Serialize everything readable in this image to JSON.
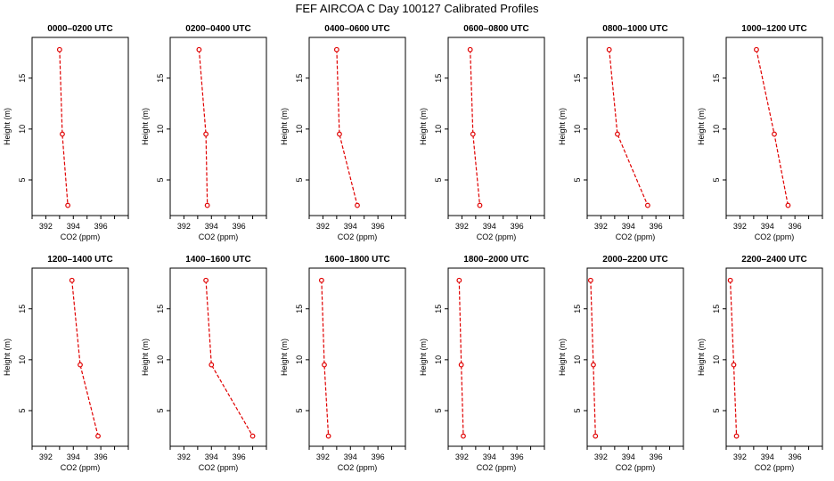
{
  "title": "FEF AIRCOA C  Day 100127  Calibrated Profiles",
  "colors": {
    "series": "#e00000",
    "axis": "#000000",
    "background": "#ffffff"
  },
  "chart_data": [
    {
      "type": "line",
      "title": "0000–0200 UTC",
      "xlabel": "CO2 (ppm)",
      "ylabel": "Height (m)",
      "xlim": [
        391,
        398
      ],
      "ylim": [
        1.5,
        19
      ],
      "xticks": [
        392,
        394,
        396
      ],
      "yticks": [
        5,
        10,
        15
      ],
      "x": [
        393.0,
        393.2,
        393.6
      ],
      "y": [
        17.8,
        9.5,
        2.5
      ]
    },
    {
      "type": "line",
      "title": "0200–0400 UTC",
      "xlabel": "CO2 (ppm)",
      "ylabel": "Height (m)",
      "xlim": [
        391,
        398
      ],
      "ylim": [
        1.5,
        19
      ],
      "xticks": [
        392,
        394,
        396
      ],
      "yticks": [
        5,
        10,
        15
      ],
      "x": [
        393.1,
        393.6,
        393.7
      ],
      "y": [
        17.8,
        9.5,
        2.5
      ]
    },
    {
      "type": "line",
      "title": "0400–0600 UTC",
      "xlabel": "CO2 (ppm)",
      "ylabel": "Height (m)",
      "xlim": [
        391,
        398
      ],
      "ylim": [
        1.5,
        19
      ],
      "xticks": [
        392,
        394,
        396
      ],
      "yticks": [
        5,
        10,
        15
      ],
      "x": [
        393.0,
        393.2,
        394.5
      ],
      "y": [
        17.8,
        9.5,
        2.5
      ]
    },
    {
      "type": "line",
      "title": "0600–0800 UTC",
      "xlabel": "CO2 (ppm)",
      "ylabel": "Height (m)",
      "xlim": [
        391,
        398
      ],
      "ylim": [
        1.5,
        19
      ],
      "xticks": [
        392,
        394,
        396
      ],
      "yticks": [
        5,
        10,
        15
      ],
      "x": [
        392.6,
        392.8,
        393.3
      ],
      "y": [
        17.8,
        9.5,
        2.5
      ]
    },
    {
      "type": "line",
      "title": "0800–1000 UTC",
      "xlabel": "CO2 (ppm)",
      "ylabel": "Height (m)",
      "xlim": [
        391,
        398
      ],
      "ylim": [
        1.5,
        19
      ],
      "xticks": [
        392,
        394,
        396
      ],
      "yticks": [
        5,
        10,
        15
      ],
      "x": [
        392.6,
        393.2,
        395.4
      ],
      "y": [
        17.8,
        9.5,
        2.5
      ]
    },
    {
      "type": "line",
      "title": "1000–1200 UTC",
      "xlabel": "CO2 (ppm)",
      "ylabel": "Height (m)",
      "xlim": [
        391,
        398
      ],
      "ylim": [
        1.5,
        19
      ],
      "xticks": [
        392,
        394,
        396
      ],
      "yticks": [
        5,
        10,
        15
      ],
      "x": [
        393.2,
        394.5,
        395.5
      ],
      "y": [
        17.8,
        9.5,
        2.5
      ]
    },
    {
      "type": "line",
      "title": "1200–1400 UTC",
      "xlabel": "CO2 (ppm)",
      "ylabel": "Height (m)",
      "xlim": [
        391,
        398
      ],
      "ylim": [
        1.5,
        19
      ],
      "xticks": [
        392,
        394,
        396
      ],
      "yticks": [
        5,
        10,
        15
      ],
      "x": [
        393.9,
        394.5,
        395.8
      ],
      "y": [
        17.8,
        9.5,
        2.5
      ]
    },
    {
      "type": "line",
      "title": "1400–1600 UTC",
      "xlabel": "CO2 (ppm)",
      "ylabel": "Height (m)",
      "xlim": [
        391,
        398
      ],
      "ylim": [
        1.5,
        19
      ],
      "xticks": [
        392,
        394,
        396
      ],
      "yticks": [
        5,
        10,
        15
      ],
      "x": [
        393.6,
        394.0,
        397.0
      ],
      "y": [
        17.8,
        9.5,
        2.5
      ]
    },
    {
      "type": "line",
      "title": "1600–1800 UTC",
      "xlabel": "CO2 (ppm)",
      "ylabel": "Height (m)",
      "xlim": [
        391,
        398
      ],
      "ylim": [
        1.5,
        19
      ],
      "xticks": [
        392,
        394,
        396
      ],
      "yticks": [
        5,
        10,
        15
      ],
      "x": [
        391.9,
        392.1,
        392.4
      ],
      "y": [
        17.8,
        9.5,
        2.5
      ]
    },
    {
      "type": "line",
      "title": "1800–2000 UTC",
      "xlabel": "CO2 (ppm)",
      "ylabel": "Height (m)",
      "xlim": [
        391,
        398
      ],
      "ylim": [
        1.5,
        19
      ],
      "xticks": [
        392,
        394,
        396
      ],
      "yticks": [
        5,
        10,
        15
      ],
      "x": [
        391.8,
        391.95,
        392.1
      ],
      "y": [
        17.8,
        9.5,
        2.5
      ]
    },
    {
      "type": "line",
      "title": "2000–2200 UTC",
      "xlabel": "CO2 (ppm)",
      "ylabel": "Height (m)",
      "xlim": [
        391,
        398
      ],
      "ylim": [
        1.5,
        19
      ],
      "xticks": [
        392,
        394,
        396
      ],
      "yticks": [
        5,
        10,
        15
      ],
      "x": [
        391.25,
        391.45,
        391.6
      ],
      "y": [
        17.8,
        9.5,
        2.5
      ]
    },
    {
      "type": "line",
      "title": "2200–2400 UTC",
      "xlabel": "CO2 (ppm)",
      "ylabel": "Height (m)",
      "xlim": [
        391,
        398
      ],
      "ylim": [
        1.5,
        19
      ],
      "xticks": [
        392,
        394,
        396
      ],
      "yticks": [
        5,
        10,
        15
      ],
      "x": [
        391.3,
        391.55,
        391.75
      ],
      "y": [
        17.8,
        9.5,
        2.5
      ]
    }
  ]
}
